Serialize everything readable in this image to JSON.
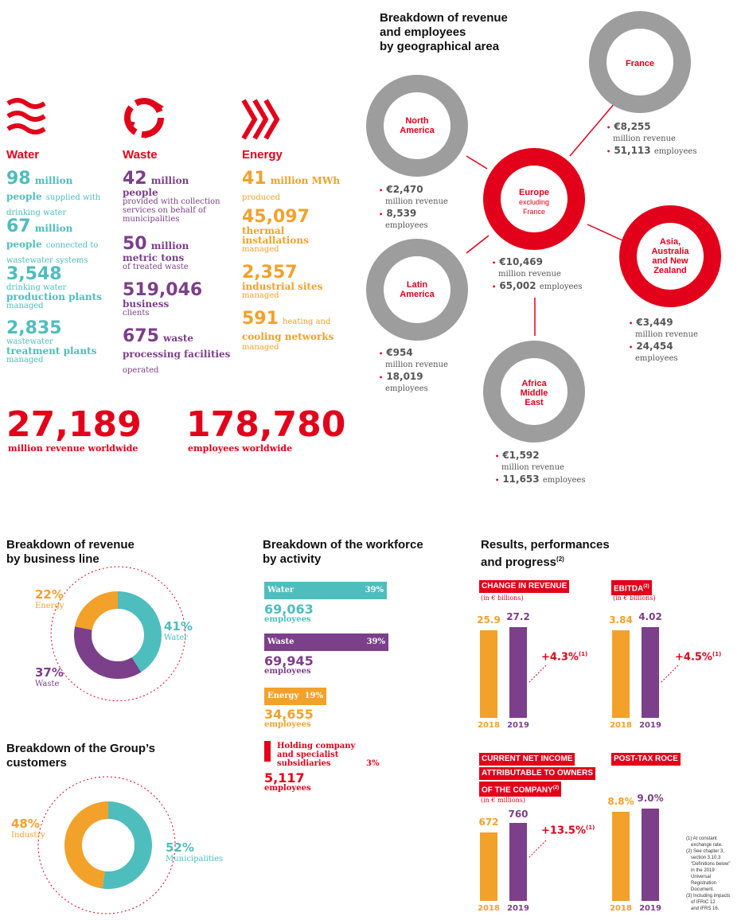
{
  "geo": {
    "title": [
      "Breakdown of revenue",
      "and employees",
      "by geographical area"
    ],
    "france": {
      "name": "France",
      "revenue": "€8,255",
      "revenue_label": "million revenue",
      "employees": "51,113",
      "employees_label": "employees"
    },
    "north_america": {
      "name": [
        "North",
        "America"
      ],
      "revenue": "€2,470",
      "revenue_label": "million revenue",
      "employees": "8,539",
      "employees_label": "employees"
    },
    "europe": {
      "name": [
        "Europe",
        "excluding",
        "France"
      ],
      "revenue": "€10,469",
      "revenue_label": "million revenue",
      "employees": "65,002",
      "employees_label": "employees"
    },
    "asia": {
      "name": [
        "Asia,",
        "Australia",
        "and New",
        "Zealand"
      ],
      "revenue": "€3,449",
      "revenue_label": "million revenue",
      "employees": "24,454",
      "employees_label": "employees"
    },
    "latin_america": {
      "name": [
        "Latin",
        "America"
      ],
      "revenue": "€954",
      "revenue_label": "million revenue",
      "employees": "18,019",
      "employees_label": "employees"
    },
    "africa": {
      "name": [
        "Africa",
        "Middle",
        "East"
      ],
      "revenue": "€1,592",
      "revenue_label": "million revenue",
      "employees": "11,653",
      "employees_label": "employees"
    }
  },
  "water": {
    "title": "Water",
    "stats": [
      {
        "num": "98",
        "unit": "million",
        "bold": "people",
        "txt": "supplied with drinking water"
      },
      {
        "num": "67",
        "unit": "million",
        "bold": "people",
        "txt": "connected to wastewater systems"
      },
      {
        "num": "3,548",
        "unit": "",
        "pre": "drinking water",
        "bold": "production plants",
        "txt": "managed"
      },
      {
        "num": "2,835",
        "unit": "",
        "pre": "wastewater",
        "bold": "treatment plants",
        "txt": "managed"
      }
    ]
  },
  "waste": {
    "title": "Waste",
    "stats": [
      {
        "num": "42",
        "unit": "million",
        "bold": "people",
        "txt": "provided with collection services on behalf of municipalities"
      },
      {
        "num": "50",
        "unit": "million",
        "bold": "metric tons",
        "txt": "of treated waste"
      },
      {
        "num": "519,046",
        "unit": "",
        "bold": "business",
        "txt": "clients"
      },
      {
        "num": "675",
        "unit": "waste",
        "bold": "processing facilities",
        "txt": "operated"
      }
    ]
  },
  "energy": {
    "title": "Energy",
    "stats": [
      {
        "num": "41",
        "unit": "million MWh",
        "bold": "",
        "txt": "produced"
      },
      {
        "num": "45,097",
        "unit": "",
        "bold": "thermal installations",
        "txt": "managed"
      },
      {
        "num": "2,357",
        "unit": "",
        "bold": "industrial sites",
        "txt": "managed"
      },
      {
        "num": "591",
        "unit": "",
        "pre": "heating and",
        "bold": "cooling networks",
        "txt": "managed"
      }
    ]
  },
  "totals": {
    "revenue": "27,189",
    "revenue_label": "million revenue worldwide",
    "employees": "178,780",
    "employees_label": "employees worldwide"
  },
  "business_line": {
    "title": [
      "Breakdown of revenue",
      "by business line"
    ],
    "water": {
      "pct": "41%",
      "label": "Water"
    },
    "waste": {
      "pct": "37%",
      "label": "Waste"
    },
    "energy": {
      "pct": "22%",
      "label": "Energy"
    }
  },
  "customers": {
    "title": [
      "Breakdown of the Group’s",
      "customers"
    ],
    "industry": {
      "pct": "48%",
      "label": "Industry"
    },
    "municipalities": {
      "pct": "52%",
      "label": "Municipalities"
    }
  },
  "workforce": {
    "title": [
      "Breakdown of the workforce",
      "by activity"
    ],
    "items": [
      {
        "label": "Water",
        "pct": "39%",
        "num": "69,063",
        "unit": "employees"
      },
      {
        "label": "Waste",
        "pct": "39%",
        "num": "69,945",
        "unit": "employees"
      },
      {
        "label": "Energy",
        "pct": "19%",
        "num": "34,655",
        "unit": "employees"
      },
      {
        "label": "Holding company and specialist subsidiaries",
        "pct": "3%",
        "num": "5,117",
        "unit": "employees"
      }
    ]
  },
  "results": {
    "title": [
      "Results, performances",
      "and progress"
    ],
    "title_sup": "(2)",
    "revenue": {
      "tag": "CHANGE IN REVENUE",
      "sub": "(in € billions)",
      "v2018": "25.9",
      "v2019": "27.2",
      "change": "+4.3%",
      "change_sup": "(1)"
    },
    "ebitda": {
      "tag": "EBITDA",
      "tag_sup": "(2)",
      "sub": "(in € billions)",
      "v2018": "3.84",
      "v2019": "4.02",
      "change": "+4.5%",
      "change_sup": "(1)"
    },
    "net_income": {
      "tag": [
        "CURRENT NET INCOME",
        "ATTRIBUTABLE TO OWNERS",
        "OF THE COMPANY"
      ],
      "tag_sup": "(2)",
      "sub": "(in € millions)",
      "v2018": "672",
      "v2019": "760",
      "change": "+13.5%",
      "change_sup": "(1)"
    },
    "roce": {
      "tag": "POST-TAX ROCE",
      "v2018": "8.8%",
      "v2019": "9.0%"
    },
    "years": [
      "2018",
      "2019"
    ],
    "notes": [
      "(1) At constant",
      "exchange rate.",
      "(2) See chapter 3,",
      "section 3.10.3",
      "“Definitions below”",
      "in the 2019",
      "Universal",
      "Registration",
      "Document.",
      "(3) Including impacts",
      "of IFRIC 12",
      "and IFRS 16."
    ]
  },
  "colors": {
    "red": "#e2001a",
    "teal": "#4ebdbd",
    "purple": "#7c3f8a",
    "orange": "#f2a12b",
    "gray": "#9d9d9d"
  }
}
